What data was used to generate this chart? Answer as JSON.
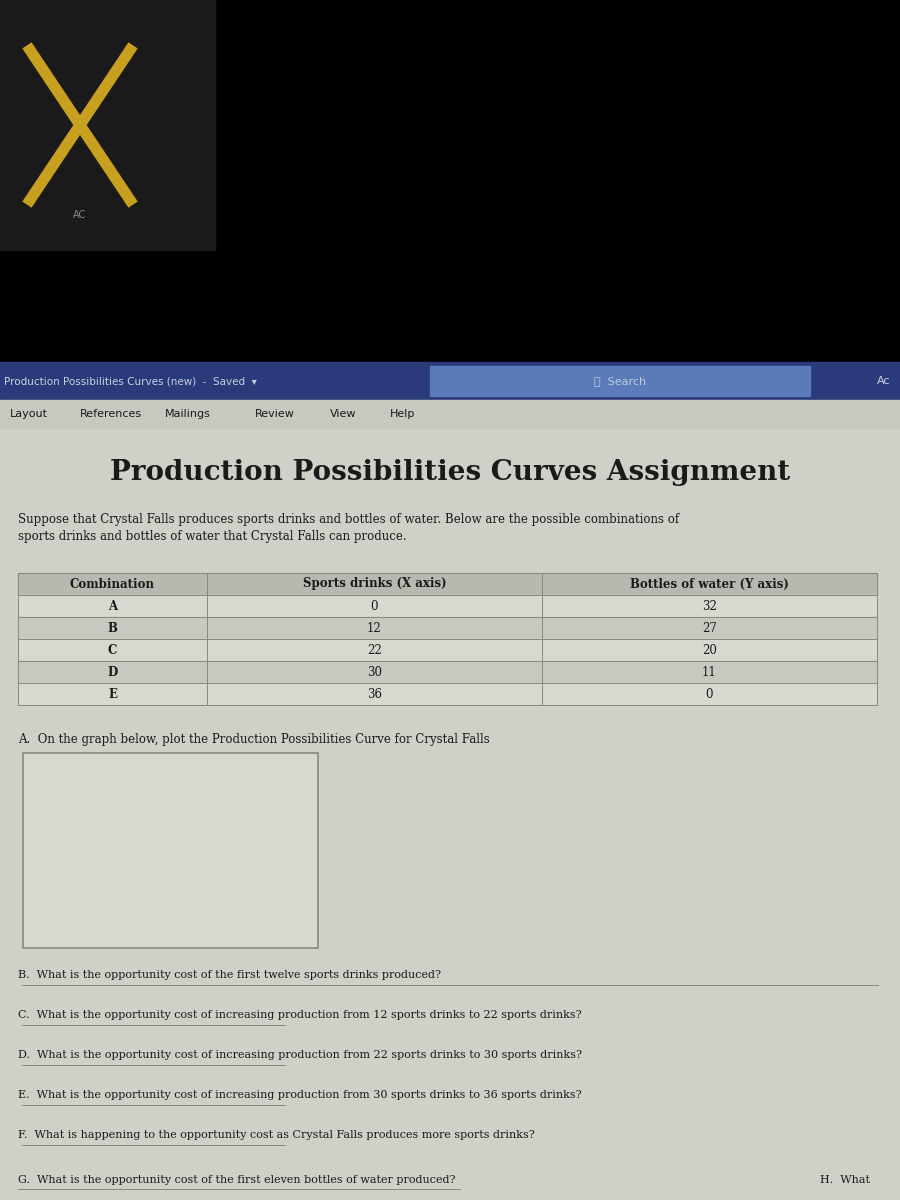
{
  "title": "Production Possibilities Curves Assignment",
  "subtitle": "Suppose that Crystal Falls produces sports drinks and bottles of water. Below are the possible combinations of\nsports drinks and bottles of water that Crystal Falls can produce.",
  "table_headers": [
    "Combination",
    "Sports drinks (X axis)",
    "Bottles of water (Y axis)"
  ],
  "table_rows": [
    [
      "A",
      "0",
      "32"
    ],
    [
      "B",
      "12",
      "27"
    ],
    [
      "C",
      "22",
      "20"
    ],
    [
      "D",
      "30",
      "11"
    ],
    [
      "E",
      "36",
      "0"
    ]
  ],
  "question_a": "A.  On the graph below, plot the Production Possibilities Curve for Crystal Falls",
  "question_b": "B.  What is the opportunity cost of the first twelve sports drinks produced?",
  "question_c": "C.  What is the opportunity cost of increasing production from 12 sports drinks to 22 sports drinks?",
  "question_d": "D.  What is the opportunity cost of increasing production from 22 sports drinks to 30 sports drinks?",
  "question_e": "E.  What is the opportunity cost of increasing production from 30 sports drinks to 36 sports drinks?",
  "question_f": "F.  What is happening to the opportunity cost as Crystal Falls produces more sports drinks?",
  "question_g": "G.  What is the opportunity cost of the first eleven bottles of water produced?",
  "question_h": "H.  What",
  "bg_top": "#000000",
  "bg_main": "#d0cfc8",
  "toolbar_color": "#2b3a7a",
  "toolbar_text_color": "#c8d0e0",
  "menu_bg": "#c8c8c0",
  "menu_text_color": "#1a1a1a",
  "title_color": "#1a1a1a",
  "body_text_color": "#1a1a1a",
  "table_header_bg": "#b8b8b0",
  "table_row_bg1": "#d8d8d0",
  "table_row_bg2": "#c8c8c0",
  "table_border_color": "#888880",
  "graph_box_bg": "#d8d8d0",
  "graph_box_border": "#888880",
  "line_color": "#888880",
  "toolbar_title": "Production Possibilities Curves (new)  -  Saved  ▾",
  "toolbar_search": "⌕  Search",
  "toolbar_right": "Ac",
  "menu_items": [
    "Layout",
    "References",
    "Mailings",
    "Review",
    "View",
    "Help"
  ]
}
